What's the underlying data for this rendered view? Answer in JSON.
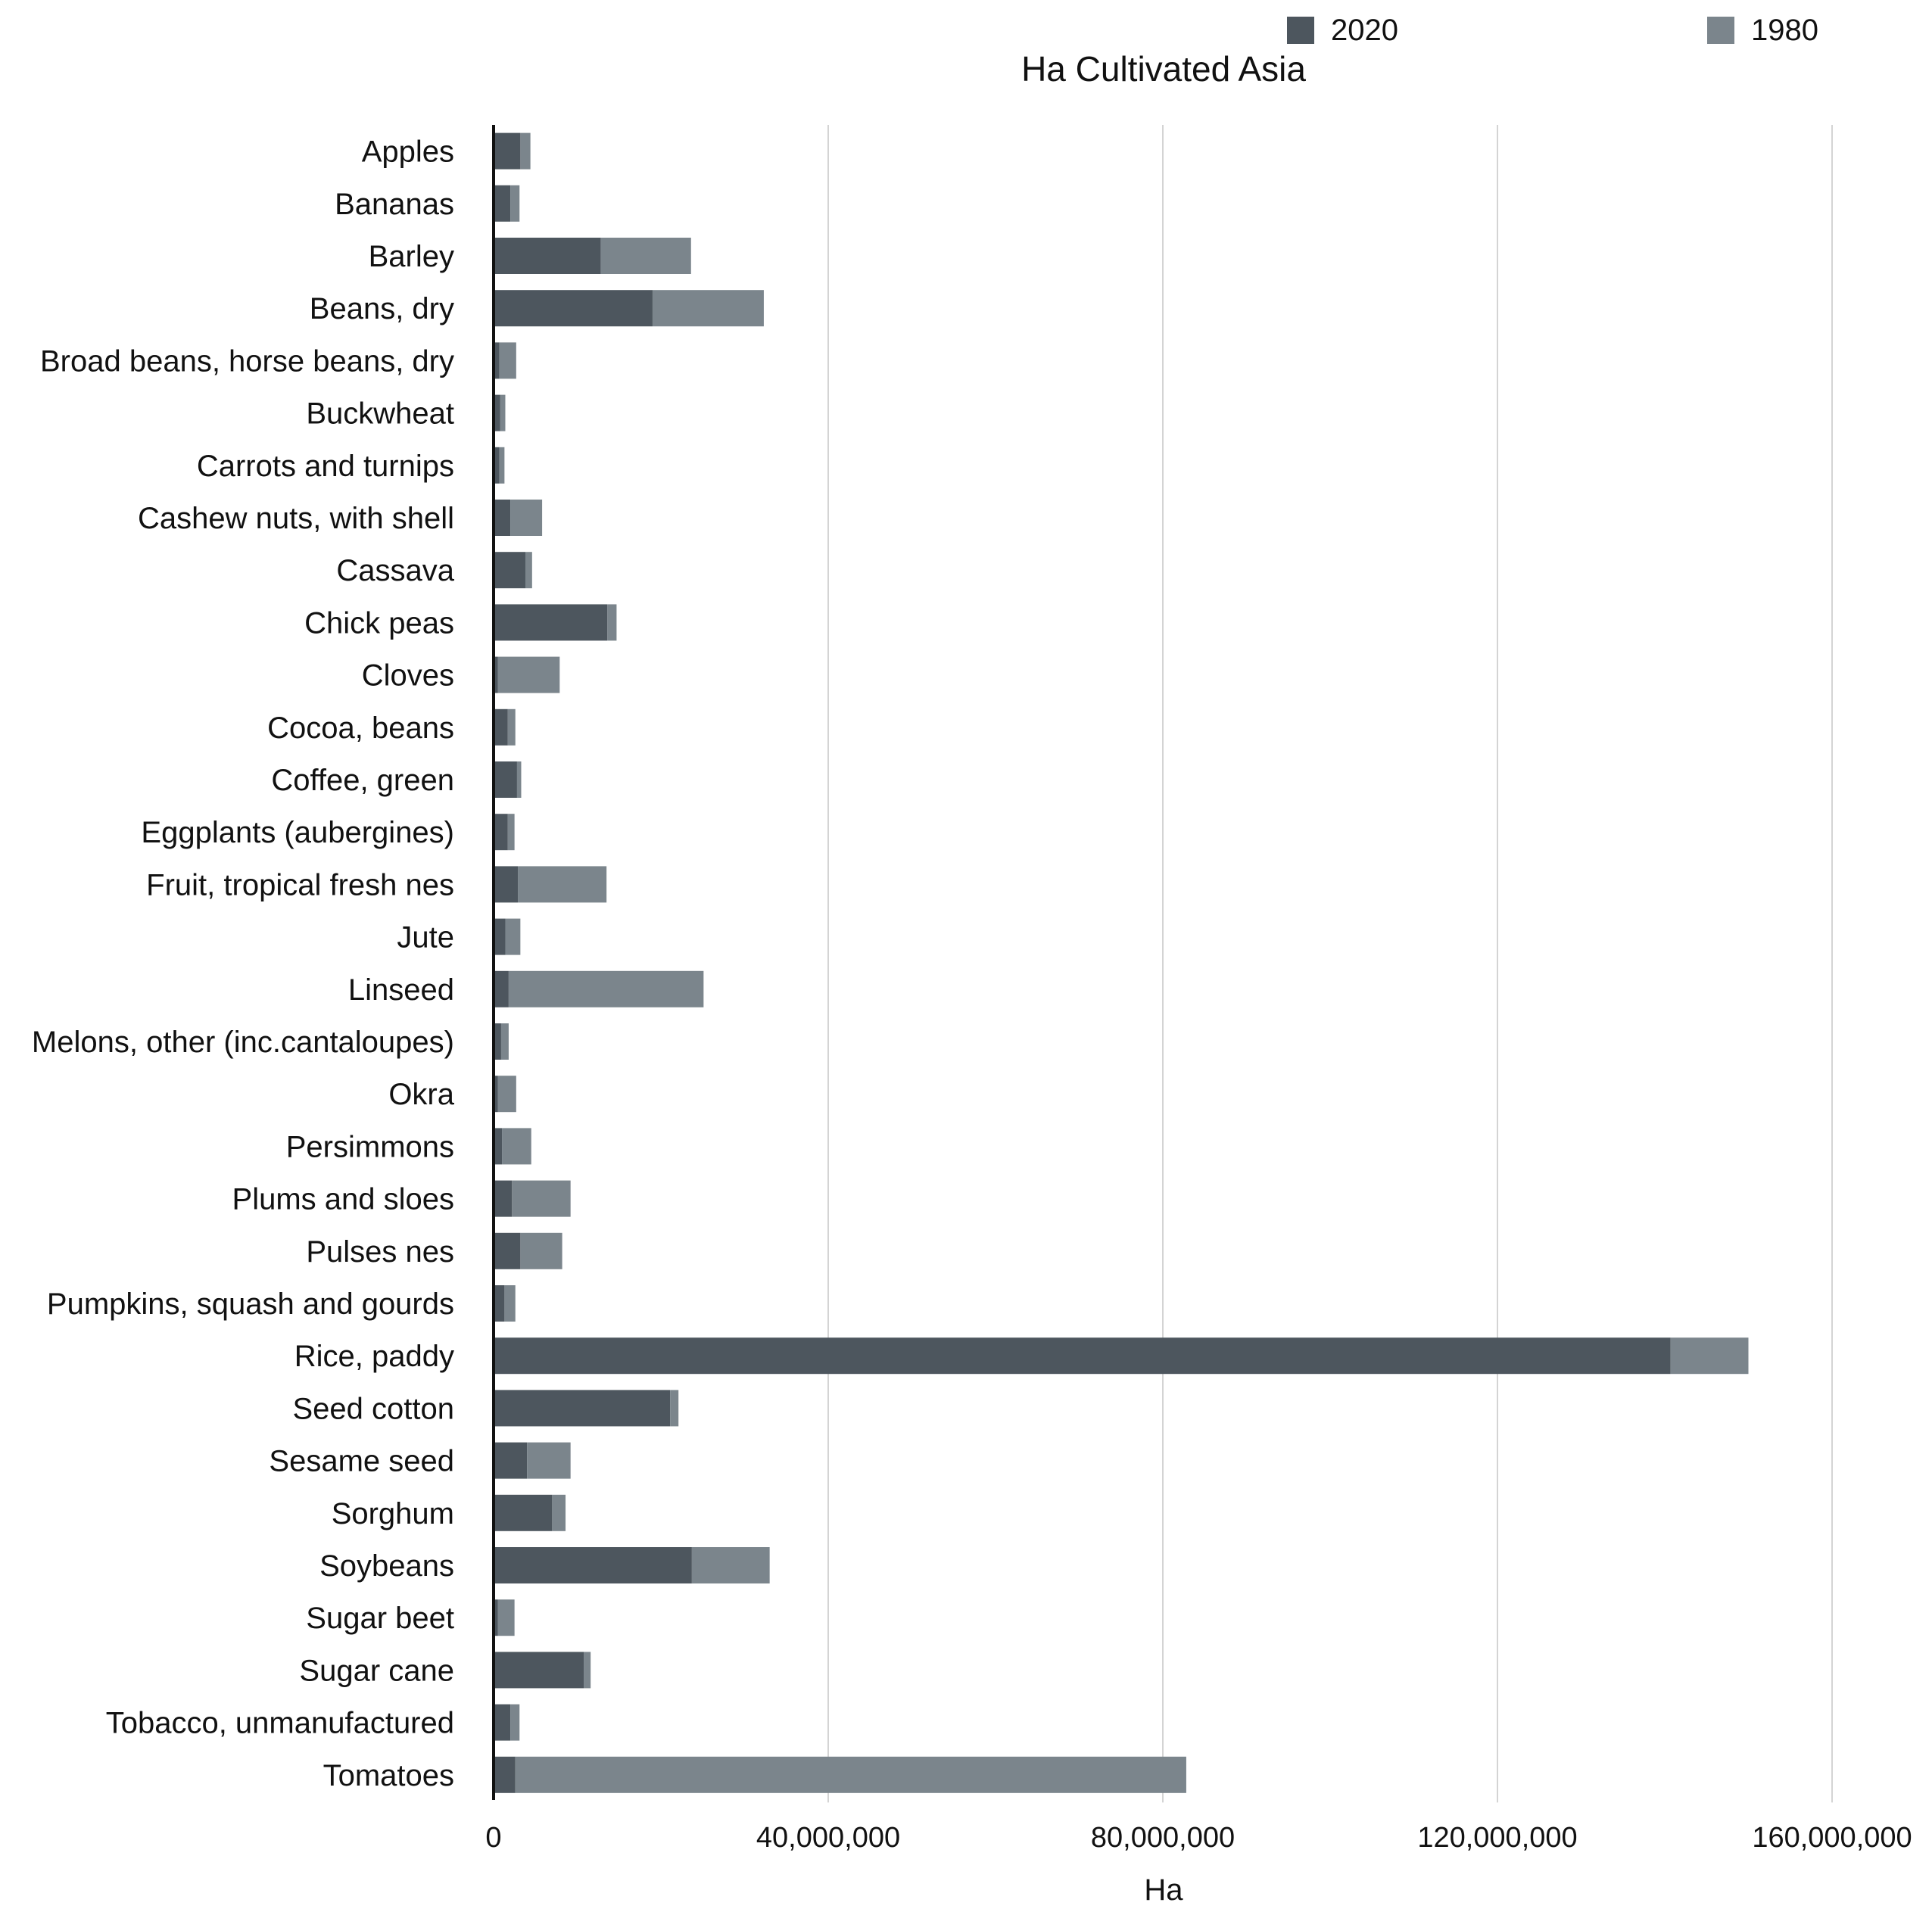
{
  "chart_data": {
    "type": "bar",
    "orientation": "horizontal",
    "stacked": true,
    "title": "Ha Cultivated Asia",
    "xlabel": "Ha",
    "ylabel": "",
    "xlim": [
      0,
      160000000
    ],
    "x_ticks": [
      0,
      40000000,
      80000000,
      120000000,
      160000000
    ],
    "x_tick_labels": [
      "0",
      "40,000,000",
      "80,000,000",
      "120,000,000",
      "160,000,000"
    ],
    "grid": "vertical",
    "legend_position": "top",
    "categories": [
      "Apples",
      "Bananas",
      "Barley",
      "Beans, dry",
      "Broad beans, horse beans, dry",
      "Buckwheat",
      "Carrots and turnips",
      "Cashew nuts, with shell",
      "Cassava",
      "Chick peas",
      "Cloves",
      "Cocoa, beans",
      "Coffee, green",
      "Eggplants (aubergines)",
      "Fruit, tropical fresh nes",
      "Jute",
      "Linseed",
      "Melons, other (inc.cantaloupes)",
      "Okra",
      "Persimmons",
      "Plums and sloes",
      "Pulses nes",
      "Pumpkins, squash and gourds",
      "Rice, paddy",
      "Seed cotton",
      "Sesame seed",
      "Sorghum",
      "Soybeans",
      "Sugar beet",
      "Sugar cane",
      "Tobacco, unmanufactured",
      "Tomatoes"
    ],
    "series": [
      {
        "name": "2020",
        "color": "#4d565e",
        "values": [
          3200000,
          2000000,
          12800000,
          19000000,
          700000,
          800000,
          700000,
          2000000,
          3800000,
          13600000,
          500000,
          1700000,
          2800000,
          1700000,
          2900000,
          1400000,
          1800000,
          900000,
          500000,
          1000000,
          2200000,
          3200000,
          1300000,
          140700000,
          21100000,
          4000000,
          7000000,
          23700000,
          500000,
          10800000,
          2000000,
          2600000
        ]
      },
      {
        "name": "1980",
        "color": "#7b858c",
        "values": [
          1200000,
          1100000,
          10800000,
          13300000,
          2000000,
          600000,
          600000,
          3800000,
          800000,
          1100000,
          7400000,
          900000,
          500000,
          800000,
          10600000,
          1800000,
          23300000,
          900000,
          2200000,
          3500000,
          7000000,
          5000000,
          1300000,
          9300000,
          1000000,
          5200000,
          1600000,
          9300000,
          2000000,
          800000,
          1100000,
          80200000
        ]
      }
    ]
  }
}
